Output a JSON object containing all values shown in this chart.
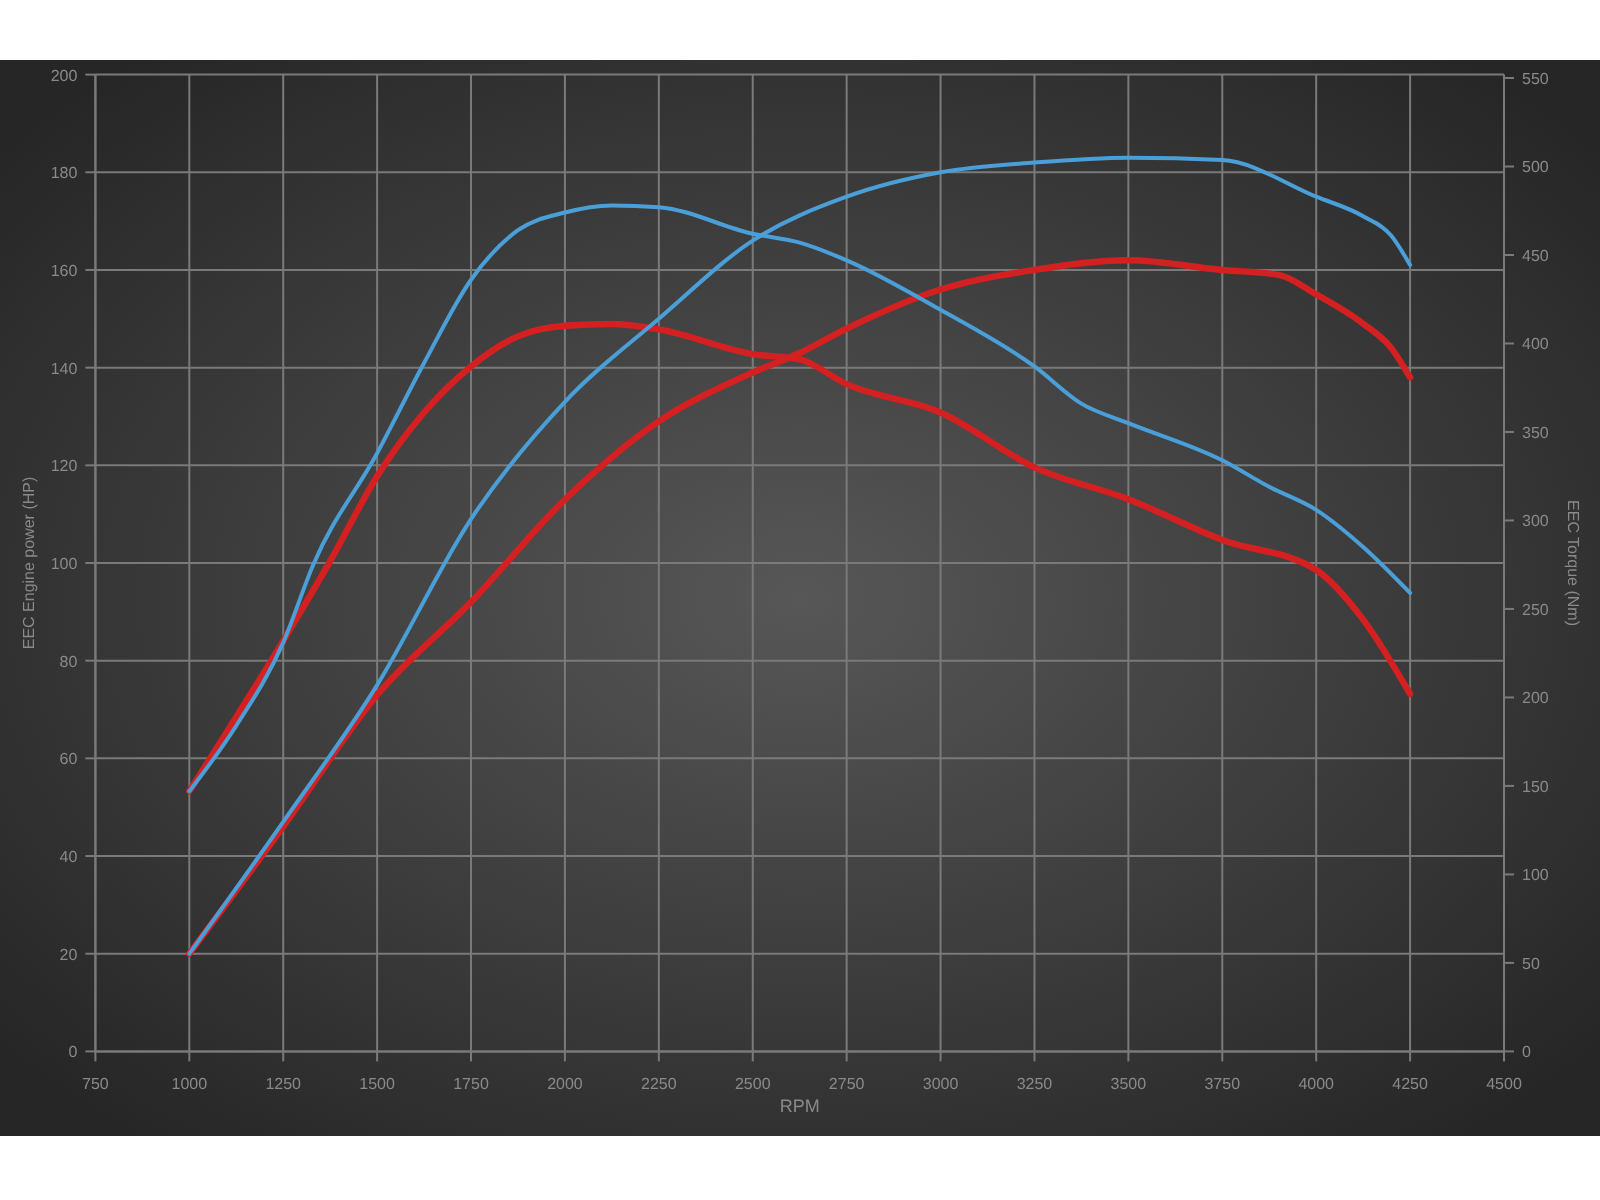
{
  "chart_data": {
    "type": "line",
    "xlabel": "RPM",
    "ylabel": "EEC Engine power (HP)",
    "y2label": "EEC Torque (Nm)",
    "xlim": [
      750,
      4500
    ],
    "xticks": [
      750,
      1000,
      1250,
      1500,
      1750,
      2000,
      2250,
      2500,
      2750,
      3000,
      3250,
      3500,
      3750,
      4000,
      4250,
      4500
    ],
    "ylim": [
      0,
      200
    ],
    "yticks": [
      0,
      20,
      40,
      60,
      80,
      100,
      120,
      140,
      160,
      180,
      200
    ],
    "y2lim": [
      0,
      550
    ],
    "y2ticks": [
      0,
      50,
      100,
      150,
      200,
      250,
      300,
      350,
      400,
      450,
      500,
      550
    ],
    "grid": true,
    "marker": "none",
    "line_style": "solid",
    "series": [
      {
        "color": "#d42020",
        "x": [
          1000,
          1250,
          1500,
          1750,
          2000,
          2250,
          2500,
          2625,
          2750,
          3000,
          3250,
          3500,
          3750,
          3900,
          4000,
          4125,
          4200,
          4250
        ],
        "values": [
          20,
          46,
          73,
          92,
          113,
          129,
          139,
          143,
          148,
          156,
          160,
          162,
          160,
          159,
          155,
          149,
          144,
          138
        ]
      },
      {
        "color": "#d42020",
        "axis": "y2",
        "x": [
          1000,
          1250,
          1375,
          1500,
          1625,
          1750,
          1875,
          2000,
          2125,
          2250,
          2500,
          2625,
          2750,
          3000,
          3250,
          3500,
          3750,
          4000,
          4125,
          4250
        ],
        "values": [
          147,
          232,
          277,
          325,
          361,
          387,
          404,
          410,
          411,
          408,
          394,
          391,
          377,
          361,
          330,
          312,
          289,
          272,
          244,
          202
        ]
      },
      {
        "color": "#4a9fd8",
        "x": [
          1000,
          1250,
          1500,
          1750,
          2000,
          2250,
          2500,
          2750,
          3000,
          3250,
          3500,
          3750,
          4000,
          4125,
          4200,
          4250
        ],
        "values": [
          20,
          47,
          75,
          109,
          133,
          150,
          166,
          175,
          180,
          182,
          183,
          182.5,
          175,
          171,
          167,
          161
        ]
      },
      {
        "color": "#4a9fd8",
        "axis": "y2",
        "x": [
          1000,
          1125,
          1250,
          1330,
          1500,
          1625,
          1750,
          1875,
          2000,
          2125,
          2250,
          2500,
          2625,
          2750,
          3000,
          3250,
          3375,
          3500,
          3750,
          3875,
          4000,
          4125,
          4250
        ],
        "values": [
          147,
          184,
          231,
          275,
          338,
          389,
          436,
          464,
          474,
          478,
          477,
          462,
          457,
          447,
          419,
          387,
          366,
          355,
          334,
          319,
          306,
          285,
          259
        ]
      }
    ]
  }
}
